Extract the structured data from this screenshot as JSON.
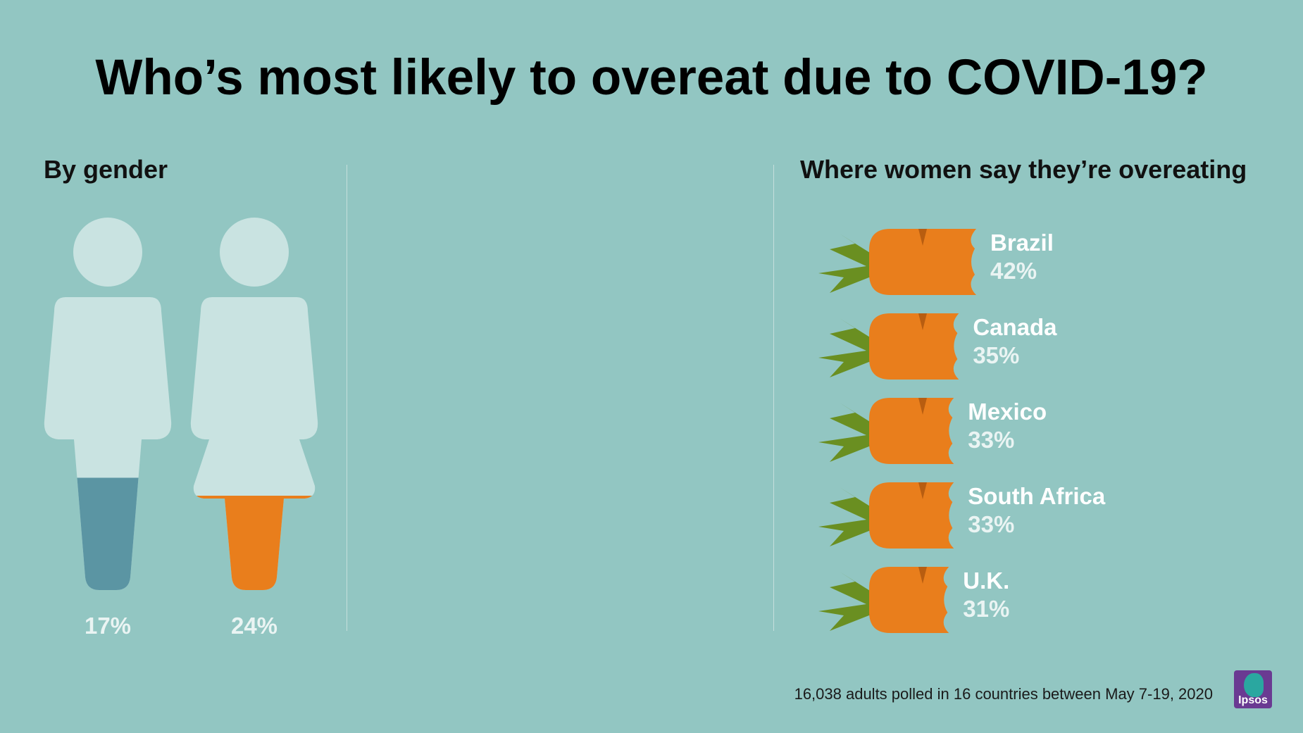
{
  "title": "Who’s most likely to overeat due to COVID-19?",
  "sections": {
    "gender_title": "By gender",
    "country_title": "Where women say they’re overeating"
  },
  "footnote": "16,038 adults polled in 16 countries between May 7-19, 2020",
  "logo": {
    "text": "Ipsos"
  },
  "colors": {
    "background": "#92c6c2",
    "figure": "#c9e3e1",
    "men_fill": "#5b95a3",
    "women_fill": "#e97e1c",
    "carrot": "#e97e1c",
    "carrot_dark": "#b85d10",
    "leaf": "#6a8f21"
  },
  "chart_data": [
    {
      "type": "bar",
      "title": "By gender",
      "categories": [
        "Men",
        "Women"
      ],
      "values": [
        17,
        24
      ],
      "labels": [
        "17%",
        "24%"
      ],
      "ylim": [
        0,
        100
      ]
    },
    {
      "type": "bar",
      "title": "Where women say they’re overeating",
      "categories": [
        "Brazil",
        "Canada",
        "Mexico",
        "South Africa",
        "U.K."
      ],
      "values": [
        42,
        35,
        33,
        33,
        31
      ],
      "labels": [
        "42%",
        "35%",
        "33%",
        "33%",
        "31%"
      ]
    }
  ]
}
